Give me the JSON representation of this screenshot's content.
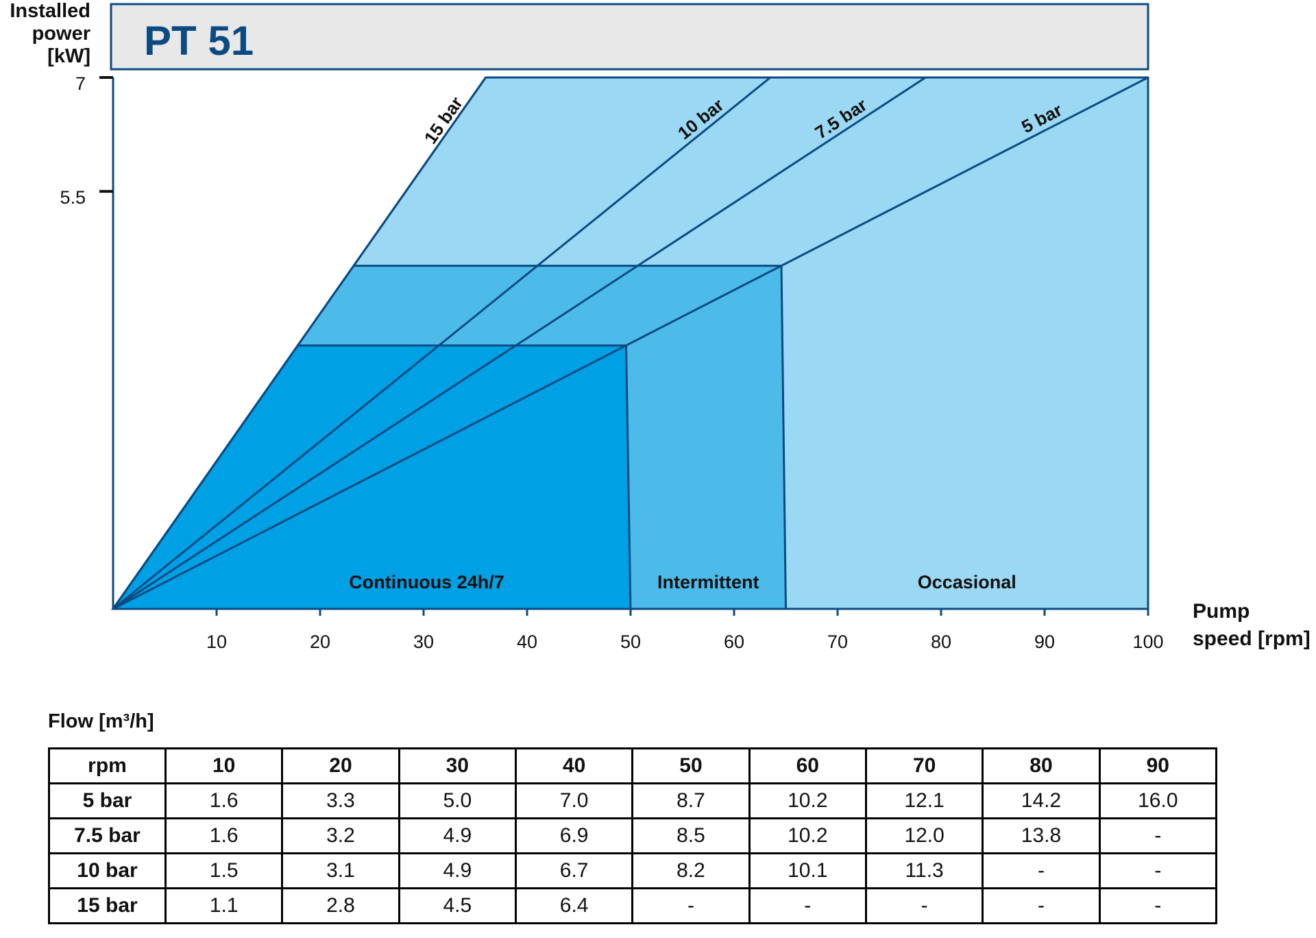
{
  "chart_data": {
    "type": "line",
    "title": "PT 51",
    "ylabel": "Installed power [kW]",
    "xlabel": "Pump speed [rpm]",
    "xlim": [
      0,
      100
    ],
    "ylim": [
      0,
      7
    ],
    "x_ticks": [
      10,
      20,
      30,
      40,
      50,
      60,
      70,
      80,
      90,
      100
    ],
    "y_ticks": [
      5.5,
      7
    ],
    "series": [
      {
        "name": "15 bar",
        "x": [
          0,
          36
        ],
        "y": [
          0,
          7
        ]
      },
      {
        "name": "10 bar",
        "x": [
          0,
          63.5
        ],
        "y": [
          0,
          7
        ]
      },
      {
        "name": "7.5 bar",
        "x": [
          0,
          78.5
        ],
        "y": [
          0,
          7
        ]
      },
      {
        "name": "5 bar",
        "x": [
          0,
          100
        ],
        "y": [
          0,
          7
        ]
      }
    ],
    "regions": [
      {
        "name": "Continuous 24h/7",
        "x": [
          0,
          50
        ],
        "y": [
          0,
          3.47
        ],
        "color": "#00a0e4"
      },
      {
        "name": "Intermittent",
        "x": [
          0,
          65
        ],
        "y": [
          0,
          4.52
        ],
        "color": "#4dbbea"
      },
      {
        "name": "Occasional",
        "x": [
          0,
          100
        ],
        "y": [
          0,
          7
        ],
        "color": "#9bd8f3"
      }
    ],
    "colors": {
      "line": "#0b4b82",
      "title": "#0b4b82",
      "title_bg": "#e8e8e8"
    }
  },
  "labels": {
    "ylabel_lines": [
      "Installed",
      "power",
      "[kW]"
    ],
    "xlabel_lines": [
      "Pump",
      "speed [rpm]"
    ]
  },
  "flow_table": {
    "title": "Flow [m³/h]",
    "header": [
      "rpm",
      "10",
      "20",
      "30",
      "40",
      "50",
      "60",
      "70",
      "80",
      "90"
    ],
    "rows": [
      [
        "5 bar",
        "1.6",
        "3.3",
        "5.0",
        "7.0",
        "8.7",
        "10.2",
        "12.1",
        "14.2",
        "16.0"
      ],
      [
        "7.5 bar",
        "1.6",
        "3.2",
        "4.9",
        "6.9",
        "8.5",
        "10.2",
        "12.0",
        "13.8",
        "-"
      ],
      [
        "10 bar",
        "1.5",
        "3.1",
        "4.9",
        "6.7",
        "8.2",
        "10.1",
        "11.3",
        "-",
        "-"
      ],
      [
        "15 bar",
        "1.1",
        "2.8",
        "4.5",
        "6.4",
        "-",
        "-",
        "-",
        "-",
        "-"
      ]
    ]
  }
}
